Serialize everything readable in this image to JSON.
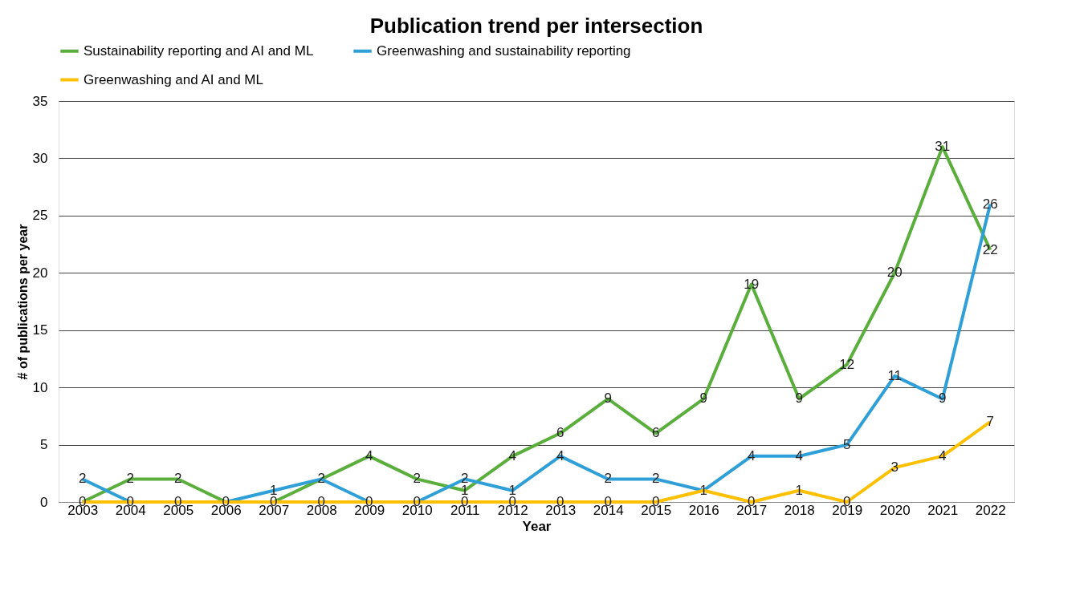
{
  "chart_data": {
    "type": "line",
    "title": "Publication trend per intersection",
    "xlabel": "Year",
    "ylabel": "# of publications per year",
    "categories": [
      "2003",
      "2004",
      "2005",
      "2006",
      "2007",
      "2008",
      "2009",
      "2010",
      "2011",
      "2012",
      "2013",
      "2014",
      "2015",
      "2016",
      "2017",
      "2018",
      "2019",
      "2020",
      "2021",
      "2022"
    ],
    "series": [
      {
        "name": "Sustainability reporting and AI and ML",
        "color": "#5aae3c",
        "values": [
          0,
          2,
          2,
          0,
          0,
          2,
          4,
          2,
          1,
          4,
          6,
          9,
          6,
          9,
          19,
          9,
          12,
          20,
          31,
          22
        ]
      },
      {
        "name": "Greenwashing and sustainability reporting",
        "color": "#2f9fd8",
        "values": [
          2,
          0,
          0,
          0,
          1,
          2,
          0,
          0,
          2,
          1,
          4,
          2,
          2,
          1,
          4,
          4,
          5,
          11,
          9,
          26
        ],
        "value_labels": [
          "2",
          "0",
          "0",
          null,
          "1",
          null,
          "0",
          "0",
          "2",
          "1",
          "4",
          "2",
          "2",
          "1",
          "4",
          "4",
          "5",
          "11",
          "9",
          "26"
        ]
      },
      {
        "name": "Greenwashing and AI and ML",
        "color": "#ffc000",
        "values": [
          0,
          0,
          0,
          0,
          0,
          0,
          0,
          0,
          0,
          0,
          0,
          0,
          0,
          1,
          0,
          1,
          0,
          3,
          4,
          7
        ],
        "value_labels": [
          null,
          null,
          null,
          null,
          null,
          "0",
          null,
          null,
          "0",
          "0",
          "0",
          "0",
          "0",
          null,
          "0",
          "1",
          "0",
          "3",
          "4",
          "7"
        ]
      }
    ],
    "ylim": [
      0,
      35
    ],
    "yticks": [
      0,
      5,
      10,
      15,
      20,
      25,
      30,
      35
    ],
    "grid": "y",
    "legend": "top",
    "data_labels": true,
    "marker": "none",
    "line_style": "solid"
  }
}
